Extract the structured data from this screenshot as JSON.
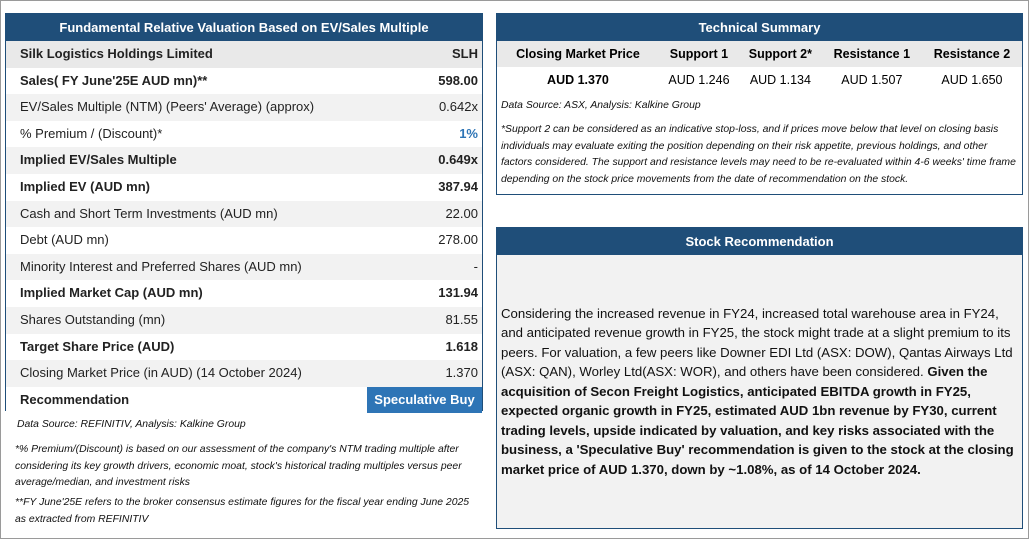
{
  "valuation": {
    "title": "Fundamental Relative Valuation Based on EV/Sales Multiple",
    "company": "Silk Logistics Holdings Limited",
    "ticker": "SLH",
    "rows": [
      {
        "label": "Sales( FY June'25E AUD mn)**",
        "value": "598.00"
      },
      {
        "label": "EV/Sales Multiple (NTM)  (Peers' Average) (approx)",
        "value": "0.642x"
      },
      {
        "label": "% Premium / (Discount)*",
        "value": "1%"
      },
      {
        "label": "Implied EV/Sales Multiple",
        "value": "0.649x"
      },
      {
        "label": "Implied EV (AUD mn)",
        "value": "387.94"
      },
      {
        "label": "Cash and Short Term Investments (AUD mn)",
        "value": "22.00"
      },
      {
        "label": "Debt (AUD mn)",
        "value": "278.00"
      },
      {
        "label": "Minority Interest and Preferred Shares (AUD mn)",
        "value": "-"
      },
      {
        "label": "Implied Market Cap (AUD mn)",
        "value": "131.94"
      },
      {
        "label": "Shares Outstanding (mn)",
        "value": "81.55"
      },
      {
        "label": "Target Share Price (AUD)",
        "value": "1.618"
      },
      {
        "label": "Closing Market Price (in AUD) (14 October 2024)",
        "value": "1.370"
      },
      {
        "label": "Recommendation",
        "value": "Speculative Buy"
      }
    ],
    "source": "Data Source: REFINITIV, Analysis: Kalkine Group",
    "notes": [
      "*% Premium/(Discount) is based on our assessment of the company's NTM trading multiple after considering its key growth drivers, economic moat, stock's historical trading multiples versus peer average/median, and investment risks",
      "**FY June'25E refers to the broker consensus estimate figures for the fiscal year ending June 2025 as extracted from REFINITIV"
    ]
  },
  "technical": {
    "title": "Technical Summary",
    "headers": [
      "Closing Market Price",
      "Support 1",
      "Support 2*",
      "Resistance 1",
      "Resistance 2"
    ],
    "values": [
      "AUD 1.370",
      "AUD 1.246",
      "AUD 1.134",
      "AUD 1.507",
      "AUD 1.650"
    ],
    "source": "Data Source: ASX, Analysis: Kalkine Group",
    "note": "*Support 2 can be considered as an indicative stop-loss, and if prices move below that level on closing basis individuals may evaluate exiting the position depending on their risk appetite, previous holdings, and other factors considered. The support and resistance levels may need to be re-evaluated within 4-6 weeks' time frame depending on the stock price movements from the date of recommendation on the stock."
  },
  "recommendation": {
    "title": "Stock Recommendation",
    "text": "Considering the increased revenue in FY24, increased total warehouse area in FY24, and anticipated revenue growth in FY25, the stock might trade at a slight premium to its peers. For valuation, a few peers like Downer EDI Ltd (ASX: DOW), Qantas Airways Ltd (ASX: QAN), Worley Ltd(ASX: WOR), and others have been considered.",
    "bold_text": "Given the acquisition of Secon Freight Logistics, anticipated EBITDA growth in FY25, expected organic growth in FY25, estimated AUD 1bn revenue by FY30, current trading levels, upside indicated by valuation, and key risks associated with the business, a 'Speculative Buy' recommendation is given to the stock at the closing market price of AUD 1.370, down by ~1.08%, as of 14 October 2024."
  }
}
